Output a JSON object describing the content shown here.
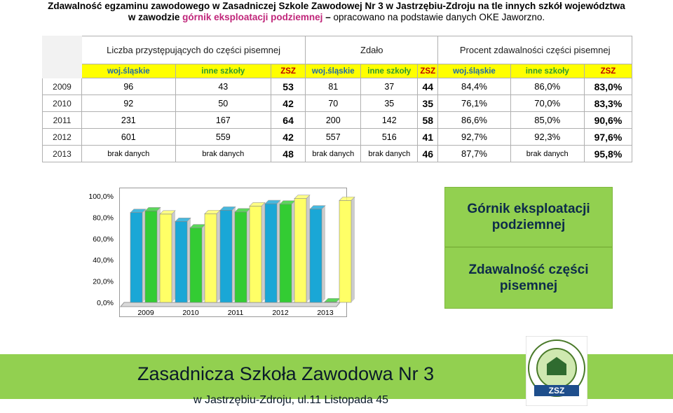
{
  "header": {
    "line1": "Zdawalność egzaminu zawodowego w Zasadniczej Szkole Zawodowej Nr 3 w Jastrzębiu-Zdroju na tle innych szkół województwa",
    "line2_pre": "w zawodzie ",
    "line2_highlight": "górnik eksploatacji podziemnej",
    "line2_dash": " – ",
    "line2_post": "opracowano na podstawie danych OKE Jaworzno."
  },
  "table": {
    "groups": [
      "Liczba przystępujących do części pisemnej",
      "Zdało",
      "Procent zdawalności części pisemnej"
    ],
    "subheaders": [
      "woj.śląskie",
      "inne szkoły",
      "ZSZ",
      "woj.śląskie",
      "inne szkoły",
      "ZSZ",
      "woj.śląskie",
      "inne szkoły",
      "ZSZ"
    ],
    "rows": [
      {
        "year": "2009",
        "cells": [
          "96",
          "43",
          "53",
          "81",
          "37",
          "44",
          "84,4%",
          "86,0%",
          "83,0%"
        ]
      },
      {
        "year": "2010",
        "cells": [
          "92",
          "50",
          "42",
          "70",
          "35",
          "35",
          "76,1%",
          "70,0%",
          "83,3%"
        ]
      },
      {
        "year": "2011",
        "cells": [
          "231",
          "167",
          "64",
          "200",
          "142",
          "58",
          "86,6%",
          "85,0%",
          "90,6%"
        ]
      },
      {
        "year": "2012",
        "cells": [
          "601",
          "559",
          "42",
          "557",
          "516",
          "41",
          "92,7%",
          "92,3%",
          "97,6%"
        ]
      },
      {
        "year": "2013",
        "cells": [
          "brak danych",
          "brak danych",
          "48",
          "brak danych",
          "brak danych",
          "46",
          "87,7%",
          "brak danych",
          "95,8%"
        ]
      }
    ]
  },
  "chart_data": {
    "type": "bar",
    "categories": [
      "2009",
      "2010",
      "2011",
      "2012",
      "2013"
    ],
    "yticks": [
      "0,0%",
      "20,0%",
      "40,0%",
      "60,0%",
      "80,0%",
      "100,0%"
    ],
    "ylim": [
      0,
      100
    ],
    "series": [
      {
        "values": [
          84.4,
          76.1,
          86.6,
          92.7,
          87.7
        ],
        "color": "#1aa7d6"
      },
      {
        "values": [
          86.0,
          70.0,
          85.0,
          92.3,
          0.5
        ],
        "color": "#33cc33"
      },
      {
        "values": [
          83.0,
          83.3,
          90.6,
          97.6,
          95.8
        ],
        "color": "#ffff66"
      }
    ]
  },
  "badges": {
    "top": "Górnik eksploatacji podziemnej",
    "bottom": "Zdawalność części pisemnej"
  },
  "footer": {
    "title": "Zasadnicza Szkoła Zawodowa Nr 3",
    "address": "w Jastrzębiu-Zdroju, ul.11 Listopada 45"
  },
  "logo": {
    "text": "ZESPÓŁ SZKÓŁ ZAWODOWYCH NR 2 W JASTRZĘBIU ZDROJU",
    "mark": "ZSZ"
  }
}
